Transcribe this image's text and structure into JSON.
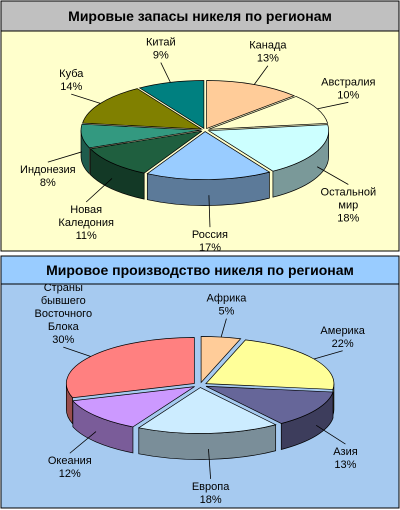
{
  "chart_data": [
    {
      "type": "pie3d",
      "title": "Мировые запасы никеля по регионам",
      "categories": [
        "Канада",
        "Австралия",
        "Остальной мир",
        "Россия",
        "Новая Каледония",
        "Индонезия",
        "Куба",
        "Китай"
      ],
      "values": [
        13,
        10,
        18,
        17,
        11,
        8,
        14,
        9
      ],
      "value_labels": [
        "13%",
        "10%",
        "18%",
        "17%",
        "11%",
        "8%",
        "14%",
        "9%"
      ],
      "colors": [
        "#FFCC99",
        "#FFFFCC",
        "#CCFFFF",
        "#99CCFF",
        "#1F5F3F",
        "#339980",
        "#808000",
        "#008080"
      ]
    },
    {
      "type": "pie3d",
      "title": "Мировое производство никеля по регионам",
      "categories": [
        "Африка",
        "Америка",
        "Азия",
        "Европа",
        "Океания",
        "Страны бывшего Восточного Блока"
      ],
      "values": [
        5,
        22,
        13,
        18,
        12,
        30
      ],
      "value_labels": [
        "5%",
        "22%",
        "13%",
        "18%",
        "12%",
        "30%"
      ],
      "colors": [
        "#FFCC99",
        "#FFFF99",
        "#666699",
        "#CCECFF",
        "#CC99FF",
        "#FF8080"
      ]
    }
  ]
}
